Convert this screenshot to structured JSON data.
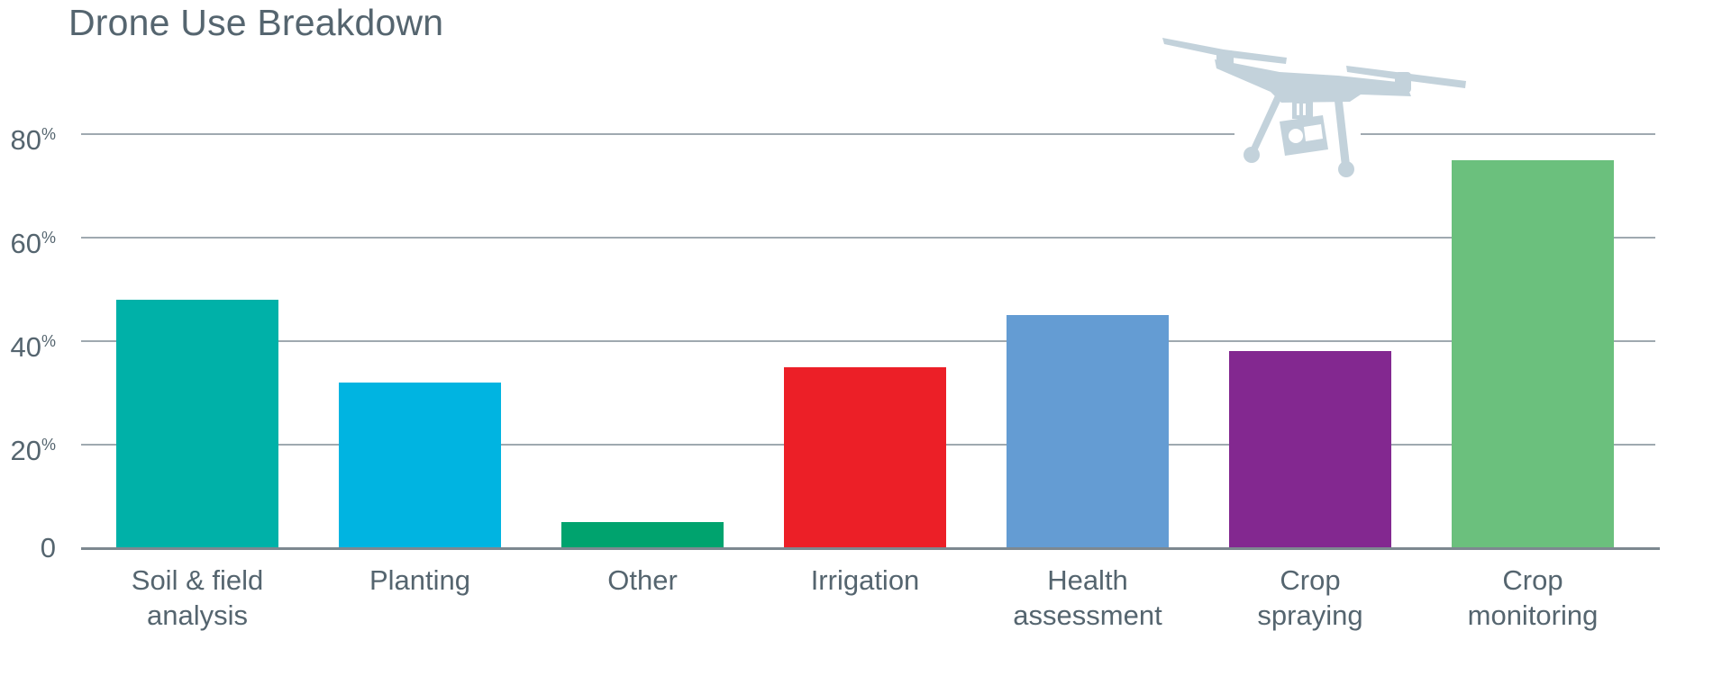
{
  "chart_data": {
    "type": "bar",
    "title": "Drone Use Breakdown",
    "categories": [
      "Soil & field analysis",
      "Planting",
      "Other",
      "Irrigation",
      "Health assessment",
      "Crop spraying",
      "Crop monitoring"
    ],
    "values": [
      48,
      32,
      5,
      35,
      45,
      38,
      75
    ],
    "unit": "%",
    "bar_colors": [
      "#00B1A8",
      "#00B4E1",
      "#00A36E",
      "#EC1F27",
      "#649CD3",
      "#832890",
      "#6BC07D"
    ],
    "label_lines": [
      [
        "Soil & field",
        "analysis"
      ],
      [
        "Planting"
      ],
      [
        "Other"
      ],
      [
        "Irrigation"
      ],
      [
        "Health",
        "assessment"
      ],
      [
        "Crop",
        "spraying"
      ],
      [
        "Crop",
        "monitoring"
      ]
    ],
    "yticks": [
      {
        "value": 0,
        "label": "0",
        "show_unit": false
      },
      {
        "value": 20,
        "label": "20",
        "show_unit": true
      },
      {
        "value": 40,
        "label": "40",
        "show_unit": true
      },
      {
        "value": 60,
        "label": "60",
        "show_unit": true
      },
      {
        "value": 80,
        "label": "80",
        "show_unit": true
      }
    ],
    "ylim": [
      0,
      88
    ],
    "xlabel": "",
    "ylabel": "",
    "grid": true,
    "legend": "none"
  },
  "decor": {
    "drone_icon": "quadcopter-drone-with-camera",
    "drone_icon_color": "#C3D2DB"
  },
  "style_colors": {
    "text": "#55656F",
    "gridline": "#9FA9B0",
    "axis_line": "#7D8890",
    "background": "#FFFFFF"
  }
}
